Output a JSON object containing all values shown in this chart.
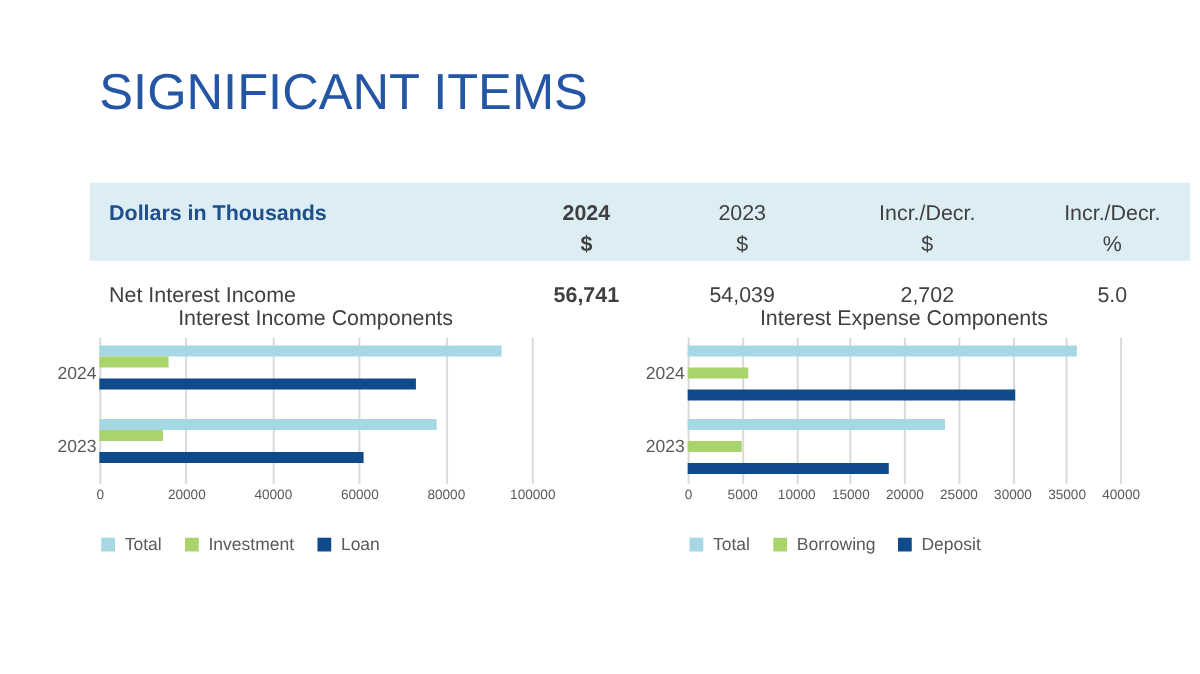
{
  "chart_data": [
    {
      "type": "other",
      "title": "SIGNIFICANT ITEMS",
      "annotations": [
        "Dollars in Thousands",
        "2024\n$",
        "2023\n$",
        "Incr./Decr.\n$",
        "Incr./Decr.\n%",
        "Net Interest Income",
        "56,741",
        "54,039",
        "2,702",
        "5.0"
      ]
    },
    {
      "type": "bar",
      "orientation": "horizontal",
      "title": "Interest Income Components",
      "categories": [
        "2024",
        "2023"
      ],
      "series": [
        {
          "name": "Total",
          "color": "#a5d8e2",
          "values": [
            93000,
            78000
          ]
        },
        {
          "name": "Investment",
          "color": "#a9d46c",
          "values": [
            16000,
            14700
          ]
        },
        {
          "name": "Loan",
          "color": "#0f4a8a",
          "values": [
            73200,
            61100
          ]
        }
      ],
      "xlim": [
        0,
        100000
      ],
      "xticks": [
        0,
        20000,
        40000,
        60000,
        80000,
        100000
      ],
      "grid": "x",
      "legend": "bottom"
    },
    {
      "type": "bar",
      "orientation": "horizontal",
      "title": "Interest Expense Components",
      "categories": [
        "2024",
        "2023"
      ],
      "series": [
        {
          "name": "Total",
          "color": "#a5d8e2",
          "values": [
            36000,
            23800
          ]
        },
        {
          "name": "Borrowing",
          "color": "#a9d46c",
          "values": [
            5600,
            5000
          ]
        },
        {
          "name": "Deposit",
          "color": "#0f4a8a",
          "values": [
            30300,
            18600
          ]
        }
      ],
      "xlim": [
        0,
        40000
      ],
      "xticks": [
        0,
        5000,
        10000,
        15000,
        20000,
        25000,
        30000,
        35000,
        40000
      ],
      "grid": "x",
      "legend": "bottom"
    }
  ]
}
